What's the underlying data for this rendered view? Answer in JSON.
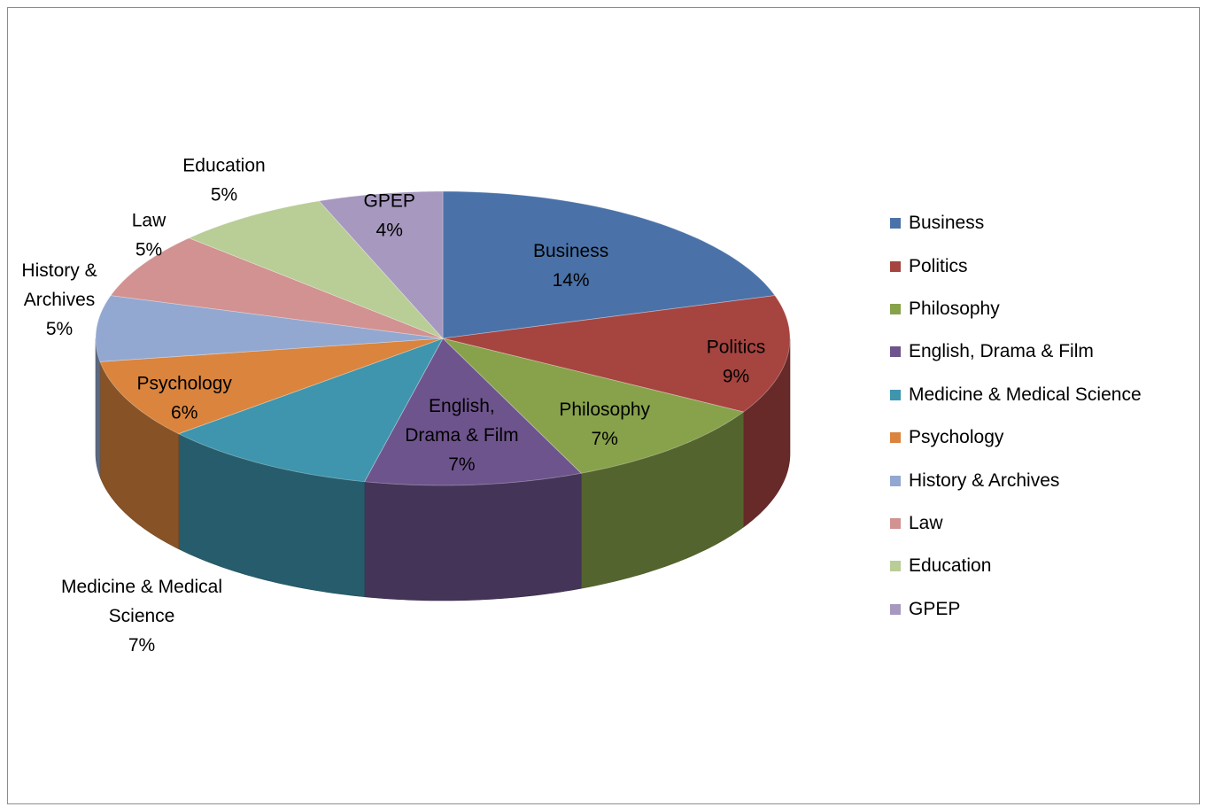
{
  "chart_data": {
    "type": "pie",
    "style": "3d",
    "legend_position": "right",
    "slices": [
      {
        "name": "Business",
        "value": 14,
        "label": "14%",
        "color": "#4A72A8",
        "data_label_lines": [
          "Business"
        ]
      },
      {
        "name": "Politics",
        "value": 9,
        "label": "9%",
        "color": "#A64440",
        "data_label_lines": [
          "Politics"
        ]
      },
      {
        "name": "Philosophy",
        "value": 7,
        "label": "7%",
        "color": "#87A24A",
        "data_label_lines": [
          "Philosophy"
        ]
      },
      {
        "name": "English, Drama & Film",
        "value": 7,
        "label": "7%",
        "color": "#6E548D",
        "data_label_lines": [
          "English,",
          "Drama & Film"
        ]
      },
      {
        "name": "Medicine & Medical Science",
        "value": 7,
        "label": "7%",
        "color": "#3E95AD",
        "data_label_lines": [
          "Medicine & Medical",
          "Science"
        ]
      },
      {
        "name": "Psychology",
        "value": 6,
        "label": "6%",
        "color": "#DA843D",
        "data_label_lines": [
          "Psychology"
        ]
      },
      {
        "name": "History & Archives",
        "value": 5,
        "label": "5%",
        "color": "#93A8D0",
        "data_label_lines": [
          "History &",
          "Archives"
        ]
      },
      {
        "name": "Law",
        "value": 5,
        "label": "5%",
        "color": "#D19291",
        "data_label_lines": [
          "Law"
        ]
      },
      {
        "name": "Education",
        "value": 5,
        "label": "5%",
        "color": "#B9CD96",
        "data_label_lines": [
          "Education"
        ]
      },
      {
        "name": "GPEP",
        "value": 4,
        "label": "4%",
        "color": "#A698BF",
        "data_label_lines": [
          "GPEP"
        ]
      }
    ]
  }
}
